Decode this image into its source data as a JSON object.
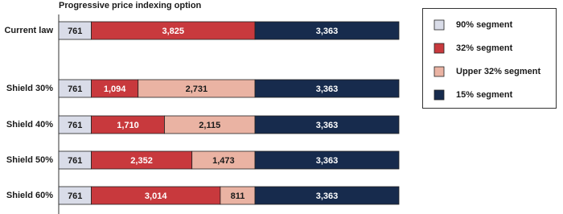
{
  "chart_data": {
    "type": "stacked-bar",
    "orientation": "horizontal",
    "title": "Progressive price indexing option",
    "categories": [
      "Current law",
      "Shield 30%",
      "Shield 40%",
      "Shield 50%",
      "Shield 60%"
    ],
    "series": [
      {
        "name": "90% segment",
        "color": "#d9dce8",
        "values": [
          761,
          761,
          761,
          761,
          761
        ]
      },
      {
        "name": "32% segment",
        "color": "#c8393d",
        "values": [
          3825,
          1094,
          1710,
          2352,
          3014
        ],
        "value_labels": [
          "3,825",
          "1,094",
          "1,710",
          "2,352",
          "3,014"
        ]
      },
      {
        "name": "Upper 32% segment",
        "color": "#eab3a3",
        "values": [
          null,
          2731,
          2115,
          1473,
          811
        ],
        "value_labels": [
          null,
          "2,731",
          "2,115",
          "1,473",
          "811"
        ]
      },
      {
        "name": "15% segment",
        "color": "#172b4d",
        "values": [
          3363,
          3363,
          3363,
          3363,
          3363
        ],
        "value_labels": [
          "3,363",
          "3,363",
          "3,363",
          "3,363",
          "3,363"
        ]
      }
    ],
    "legend": "right"
  }
}
